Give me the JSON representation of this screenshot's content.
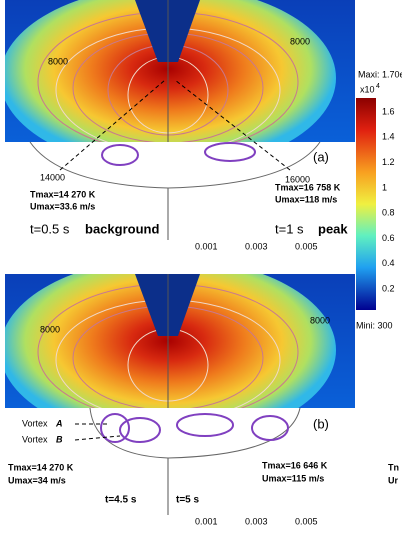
{
  "panel_a": {
    "label": "(a)",
    "isotherms": [
      "8000",
      "8000",
      "14000",
      "16000"
    ],
    "left": {
      "tmax": "Tmax=14 270 K",
      "umax": "Umax=33.6 m/s",
      "time": "t=0.5 s",
      "tag": "background"
    },
    "right": {
      "tmax": "Tmax=16 758 K",
      "umax": "Umax=118 m/s",
      "time": "t=1 s",
      "tag": "peak"
    },
    "axis_ticks": [
      "0.001",
      "0.003",
      "0.005"
    ]
  },
  "panel_b": {
    "label": "(b)",
    "isotherms": [
      "8000",
      "8000"
    ],
    "vortex_a": {
      "word": "Vortex",
      "letter": "A"
    },
    "vortex_b": {
      "word": "Vortex",
      "letter": "B"
    },
    "left": {
      "tmax": "Tmax=14 270 K",
      "umax": "Umax=34 m/s",
      "time": "t=4.5 s"
    },
    "right": {
      "tmax": "Tmax=16 646 K",
      "umax": "Umax=115 m/s",
      "time": "t=5 s"
    },
    "axis_ticks": [
      "0.001",
      "0.003",
      "0.005"
    ]
  },
  "colorbar": {
    "max": "Maxi: 1.70e",
    "multiplier": "x10",
    "exponent": "4",
    "ticks": [
      "1.6",
      "1.4",
      "1.2",
      "1",
      "0.8",
      "0.6",
      "0.4",
      "0.2"
    ],
    "min": "Mini: 300"
  },
  "cut_off": [
    "Tn",
    "Ur"
  ]
}
